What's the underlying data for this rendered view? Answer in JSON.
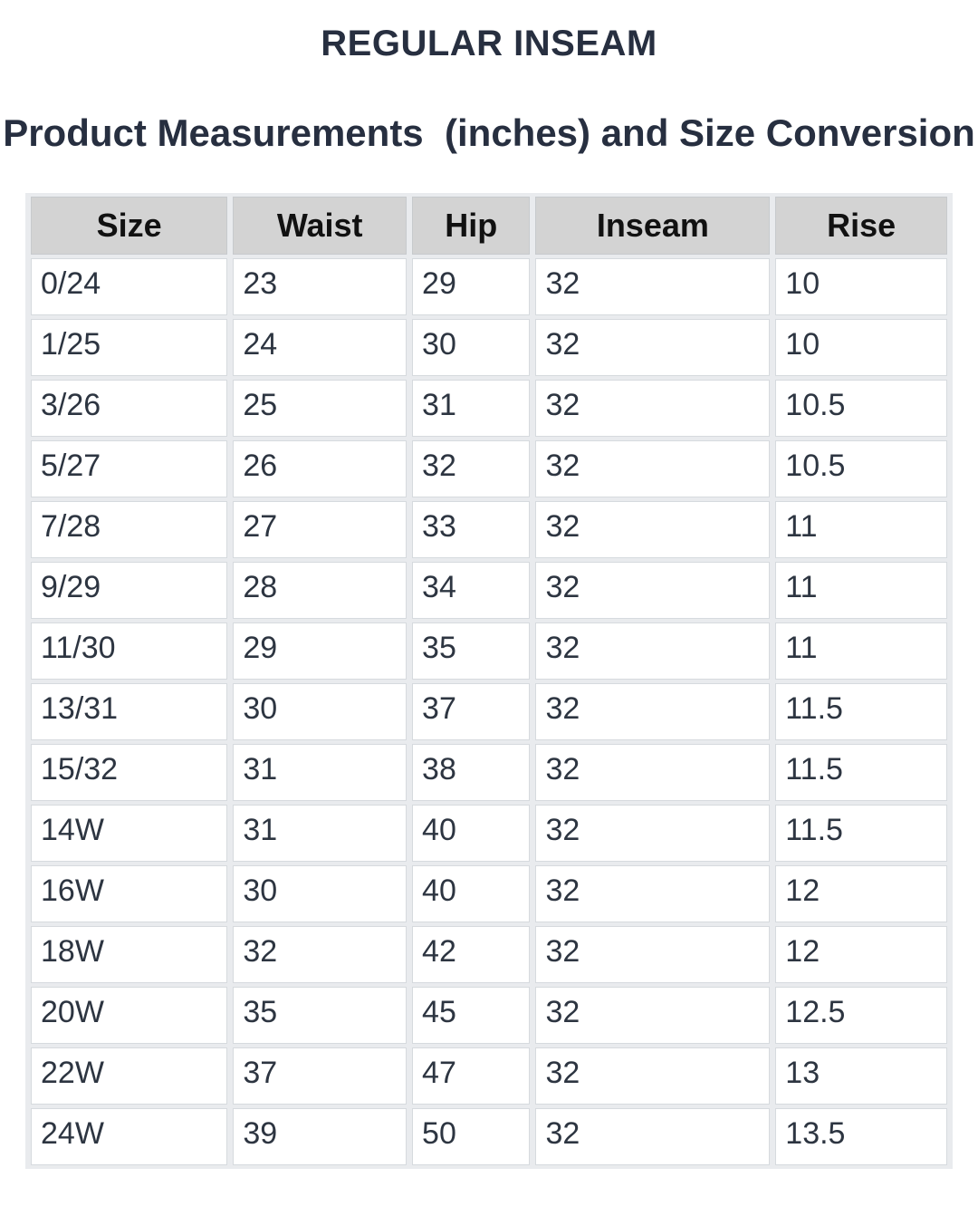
{
  "page": {
    "title": "REGULAR INSEAM",
    "subtitle": "Product Measurements  (inches) and Size Conversion"
  },
  "size_chart": {
    "columns": [
      "Size",
      "Waist",
      "Hip",
      "Inseam",
      "Rise"
    ],
    "rows": [
      [
        "0/24",
        "23",
        "29",
        "32",
        "10"
      ],
      [
        "1/25",
        "24",
        "30",
        "32",
        "10"
      ],
      [
        "3/26",
        "25",
        "31",
        "32",
        "10.5"
      ],
      [
        "5/27",
        "26",
        "32",
        "32",
        "10.5"
      ],
      [
        "7/28",
        "27",
        "33",
        "32",
        "11"
      ],
      [
        "9/29",
        "28",
        "34",
        "32",
        "11"
      ],
      [
        "11/30",
        "29",
        "35",
        "32",
        "11"
      ],
      [
        "13/31",
        "30",
        "37",
        "32",
        "11.5"
      ],
      [
        "15/32",
        "31",
        "38",
        "32",
        "11.5"
      ],
      [
        "14W",
        "31",
        "40",
        "32",
        "11.5"
      ],
      [
        "16W",
        "30",
        "40",
        "32",
        "12"
      ],
      [
        "18W",
        "32",
        "42",
        "32",
        "12"
      ],
      [
        "20W",
        "35",
        "45",
        "32",
        "12.5"
      ],
      [
        "22W",
        "37",
        "47",
        "32",
        "13"
      ],
      [
        "24W",
        "39",
        "50",
        "32",
        "13.5"
      ]
    ]
  },
  "colors": {
    "header_bg": "#d3d3d3",
    "header_text": "#111111",
    "body_text": "#2d3541",
    "title_text": "#272f40",
    "cell_border": "#d6dade",
    "gap_bg": "#e9ebee",
    "page_bg": "#ffffff"
  }
}
